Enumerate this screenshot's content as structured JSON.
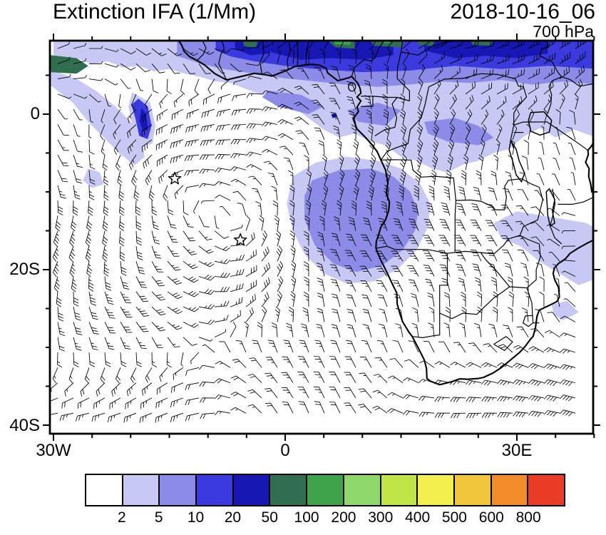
{
  "header": {
    "title": "Extinction IFA (1/Mm)",
    "datetime": "2018-10-16_06",
    "level": "700 hPa"
  },
  "axes": {
    "y_labels": [
      "0",
      "20S",
      "40S"
    ],
    "x_labels": [
      "30W",
      "0",
      "30E"
    ]
  },
  "colorbar": {
    "labels": [
      "2",
      "5",
      "10",
      "20",
      "50",
      "100",
      "200",
      "300",
      "400",
      "500",
      "600",
      "800"
    ],
    "colors": [
      "#ffffff",
      "#c8c8f4",
      "#8c8ce8",
      "#3a3ade",
      "#1717b4",
      "#2f6e4f",
      "#3da34a",
      "#8ed76a",
      "#bfe448",
      "#f3ef4f",
      "#f2c63a",
      "#f28c2b",
      "#ea3b25"
    ]
  },
  "chart_data": {
    "type": "heatmap",
    "title": "Extinction IFA (1/Mm)",
    "valid_time": "2018-10-16_06",
    "pressure_level": "700 hPa",
    "units": "1/Mm",
    "overlay": "700 hPa wind barbs",
    "region": "Africa / South Atlantic",
    "lon_range": [
      -30.5,
      40.7
    ],
    "lat_range": [
      -41.1,
      9.5
    ],
    "x_ticks": [
      {
        "lon": -30,
        "label": "30W"
      },
      {
        "lon": 0,
        "label": "0"
      },
      {
        "lon": 30,
        "label": "30E"
      }
    ],
    "y_ticks": [
      {
        "lat": 0,
        "label": "0"
      },
      {
        "lat": -20,
        "label": "20S"
      },
      {
        "lat": -40,
        "label": "40S"
      }
    ],
    "contour_levels": [
      2,
      5,
      10,
      20,
      50,
      100,
      200,
      300,
      400,
      500,
      600,
      800
    ],
    "legend_position": "bottom",
    "markers": [
      {
        "type": "star",
        "lon": -14.3,
        "lat": -8.3
      },
      {
        "type": "star",
        "lon": -5.8,
        "lat": -16.2
      }
    ],
    "shaded_regions": [
      {
        "level": "2-5",
        "color_index": 1,
        "points": [
          [
            -30,
            9.45
          ],
          [
            40.7,
            9.45
          ],
          [
            40.7,
            -3.2
          ],
          [
            37.5,
            -2
          ],
          [
            35,
            -3
          ],
          [
            33,
            -1.8
          ],
          [
            31,
            -2.8
          ],
          [
            29,
            -4.5
          ],
          [
            27,
            -5
          ],
          [
            25,
            -6
          ],
          [
            23,
            -6.5
          ],
          [
            21,
            -7.5
          ],
          [
            19,
            -7
          ],
          [
            17,
            -6
          ],
          [
            15,
            -5.5
          ],
          [
            13,
            -4
          ],
          [
            11,
            -3.5
          ],
          [
            9,
            -2.5
          ],
          [
            7,
            -3
          ],
          [
            5,
            -2
          ],
          [
            3,
            -0.5
          ],
          [
            1,
            1
          ],
          [
            -1,
            2
          ],
          [
            -3,
            2.5
          ],
          [
            -5,
            3.2
          ],
          [
            -7,
            4
          ],
          [
            -9,
            4.2
          ],
          [
            -11,
            4.8
          ],
          [
            -13,
            5.2
          ],
          [
            -15,
            5.8
          ],
          [
            -17,
            5.5
          ],
          [
            -19,
            6.2
          ],
          [
            -21,
            6
          ],
          [
            -23,
            6.8
          ],
          [
            -25,
            6.4
          ],
          [
            -27,
            7.2
          ],
          [
            -30,
            6.8
          ]
        ]
      },
      {
        "level": "2-5",
        "color_index": 1,
        "points": [
          [
            -30.5,
            5.8
          ],
          [
            -27,
            4.5
          ],
          [
            -24.5,
            3
          ],
          [
            -22,
            1
          ],
          [
            -20,
            -1
          ],
          [
            -18.5,
            -3.5
          ],
          [
            -18.2,
            -5.5
          ],
          [
            -19.5,
            -6.6
          ],
          [
            -21.5,
            -5
          ],
          [
            -23.5,
            -3
          ],
          [
            -25.5,
            -1
          ],
          [
            -27.5,
            1.5
          ],
          [
            -30.5,
            3.8
          ]
        ]
      },
      {
        "level": "2-5",
        "color_index": 1,
        "points": [
          [
            1,
            -8
          ],
          [
            4,
            -6.2
          ],
          [
            8,
            -5.5
          ],
          [
            12,
            -6
          ],
          [
            15,
            -7
          ],
          [
            17.5,
            -9
          ],
          [
            18.8,
            -11.5
          ],
          [
            18.5,
            -14.5
          ],
          [
            17,
            -17.5
          ],
          [
            14.5,
            -20
          ],
          [
            11.5,
            -21.5
          ],
          [
            8,
            -21.8
          ],
          [
            5,
            -20.5
          ],
          [
            2.5,
            -18
          ],
          [
            1,
            -15
          ],
          [
            0.2,
            -11.5
          ]
        ]
      },
      {
        "level": "2-5",
        "color_index": 1,
        "points": [
          [
            27,
            -14
          ],
          [
            30,
            -12.5
          ],
          [
            33,
            -13
          ],
          [
            36,
            -13.5
          ],
          [
            39,
            -14
          ],
          [
            40.7,
            -15
          ],
          [
            40.7,
            -21
          ],
          [
            38,
            -22
          ],
          [
            35.5,
            -20.5
          ],
          [
            33,
            -19
          ],
          [
            30.5,
            -17
          ],
          [
            28,
            -16
          ]
        ]
      },
      {
        "level": "2-5",
        "color_index": 1,
        "points": [
          [
            34.5,
            -24.5
          ],
          [
            36.5,
            -24
          ],
          [
            38,
            -25.5
          ],
          [
            36,
            -26.5
          ],
          [
            34.8,
            -25.8
          ]
        ]
      },
      {
        "level": "2-5",
        "color_index": 1,
        "points": [
          [
            -25.5,
            -7
          ],
          [
            -24,
            -7.5
          ],
          [
            -23.5,
            -9
          ],
          [
            -25,
            -9.5
          ],
          [
            -26.2,
            -8.5
          ]
        ]
      },
      {
        "level": "2-5",
        "color_index": 1,
        "points": [
          [
            -19.8,
            2.8
          ],
          [
            -17.5,
            1.5
          ],
          [
            -16.8,
            -1.5
          ],
          [
            -17.2,
            -3.8
          ],
          [
            -18.8,
            -4.2
          ],
          [
            -19.8,
            -1.5
          ],
          [
            -20.3,
            1
          ]
        ]
      },
      {
        "level": "5-10",
        "color_index": 2,
        "points": [
          [
            -14,
            9.45
          ],
          [
            40.7,
            9.45
          ],
          [
            40.7,
            3.8
          ],
          [
            36,
            4.2
          ],
          [
            32,
            3.8
          ],
          [
            28,
            4.4
          ],
          [
            24,
            4
          ],
          [
            20,
            4.2
          ],
          [
            16,
            3.8
          ],
          [
            12,
            3.5
          ],
          [
            8,
            3.8
          ],
          [
            4,
            4.2
          ],
          [
            0,
            4.6
          ],
          [
            -4,
            5.2
          ],
          [
            -8,
            5.8
          ],
          [
            -11,
            6.5
          ],
          [
            -14,
            7.5
          ]
        ]
      },
      {
        "level": "5-10",
        "color_index": 2,
        "points": [
          [
            3.5,
            -8.5
          ],
          [
            7,
            -7.2
          ],
          [
            11,
            -7
          ],
          [
            14,
            -8
          ],
          [
            16.2,
            -10
          ],
          [
            17.2,
            -12.5
          ],
          [
            16.8,
            -15
          ],
          [
            15.2,
            -17.5
          ],
          [
            12.5,
            -19.5
          ],
          [
            9.2,
            -20.3
          ],
          [
            6.2,
            -19.2
          ],
          [
            3.8,
            -16.8
          ],
          [
            2.5,
            -13.5
          ],
          [
            2.5,
            -10.5
          ]
        ]
      },
      {
        "level": "5-10",
        "color_index": 2,
        "points": [
          [
            18,
            -1
          ],
          [
            22,
            -0.5
          ],
          [
            25,
            -1.5
          ],
          [
            27,
            -3
          ],
          [
            25,
            -4
          ],
          [
            21,
            -3.5
          ],
          [
            18.5,
            -2.5
          ]
        ]
      },
      {
        "level": "5-10",
        "color_index": 2,
        "points": [
          [
            8,
            0.5
          ],
          [
            12,
            1.5
          ],
          [
            15,
            0.5
          ],
          [
            13,
            -1.5
          ],
          [
            9.5,
            -1
          ]
        ]
      },
      {
        "level": "5-10",
        "color_index": 2,
        "points": [
          [
            -2,
            3
          ],
          [
            2,
            2.5
          ],
          [
            5,
            1
          ],
          [
            3,
            0
          ],
          [
            -1,
            1
          ],
          [
            -3,
            2.2
          ]
        ]
      },
      {
        "level": "10-20",
        "color_index": 3,
        "points": [
          [
            -9,
            9.45
          ],
          [
            40.7,
            9.45
          ],
          [
            40.7,
            5.8
          ],
          [
            34,
            6.2
          ],
          [
            28,
            5.8
          ],
          [
            22,
            6.2
          ],
          [
            16,
            5.6
          ],
          [
            10,
            5.4
          ],
          [
            4,
            5.8
          ],
          [
            0,
            6.2
          ],
          [
            -4,
            6.8
          ],
          [
            -7,
            7.4
          ],
          [
            -9,
            8.2
          ]
        ]
      },
      {
        "level": "10-20",
        "color_index": 3,
        "points": [
          [
            -19,
            2
          ],
          [
            -17.8,
            1
          ],
          [
            -17.3,
            -1.5
          ],
          [
            -17.8,
            -3.2
          ],
          [
            -18.9,
            -2.8
          ],
          [
            -19.4,
            -0.5
          ],
          [
            -19.9,
            1.2
          ]
        ]
      },
      {
        "level": "20-50",
        "color_index": 4,
        "points": [
          [
            -2,
            9.45
          ],
          [
            14,
            9.45
          ],
          [
            14,
            7.6
          ],
          [
            10,
            7
          ],
          [
            6,
            7.2
          ],
          [
            2,
            7
          ],
          [
            -2,
            8
          ]
        ]
      },
      {
        "level": "20-50",
        "color_index": 4,
        "points": [
          [
            18,
            9.45
          ],
          [
            34,
            9.45
          ],
          [
            34,
            7.8
          ],
          [
            30,
            7.2
          ],
          [
            26,
            7.5
          ],
          [
            22,
            7.2
          ],
          [
            18,
            8.2
          ]
        ]
      },
      {
        "level": "20-50",
        "color_index": 4,
        "points": [
          [
            -6.5,
            9.45
          ],
          [
            -2,
            9.45
          ],
          [
            -2,
            7.8
          ],
          [
            -4.5,
            7.6
          ],
          [
            -6.5,
            8.4
          ]
        ]
      },
      {
        "level": "20-50",
        "color_index": 4,
        "points": [
          [
            -18.6,
            0.8
          ],
          [
            -18,
            0
          ],
          [
            -17.8,
            -1.8
          ],
          [
            -18.4,
            -2.2
          ],
          [
            -18.9,
            -0.8
          ]
        ]
      },
      {
        "level": "20-50",
        "color_index": 4,
        "points": [
          [
            6,
            0
          ],
          [
            6.6,
            0.1
          ],
          [
            6.7,
            -0.4
          ],
          [
            6.1,
            -0.5
          ]
        ]
      },
      {
        "level": "50-100",
        "color_index": 5,
        "points": [
          [
            -30.5,
            7.6
          ],
          [
            -27,
            7.2
          ],
          [
            -25.5,
            6.2
          ],
          [
            -27,
            5.2
          ],
          [
            -30.5,
            5.4
          ]
        ]
      },
      {
        "level": "50-100",
        "color_index": 5,
        "points": [
          [
            5.5,
            9.45
          ],
          [
            9,
            9.45
          ],
          [
            9,
            8.4
          ],
          [
            6.5,
            8.6
          ]
        ]
      },
      {
        "level": "50-100",
        "color_index": 5,
        "points": [
          [
            11,
            9.45
          ],
          [
            15.5,
            9.45
          ],
          [
            15,
            8.6
          ],
          [
            11.5,
            8.8
          ]
        ]
      },
      {
        "level": "50-100",
        "color_index": 5,
        "points": [
          [
            17,
            9.45
          ],
          [
            19.5,
            9.45
          ],
          [
            19,
            8.8
          ],
          [
            17.3,
            8.9
          ]
        ]
      },
      {
        "level": "50-100",
        "color_index": 5,
        "points": [
          [
            24,
            9.45
          ],
          [
            27,
            9.45
          ],
          [
            26.5,
            8.8
          ],
          [
            24.3,
            8.9
          ]
        ]
      },
      {
        "level": "50-100",
        "color_index": 5,
        "points": [
          [
            -5.5,
            9.45
          ],
          [
            -3.5,
            9.45
          ],
          [
            -3.8,
            8.6
          ],
          [
            -5.3,
            8.7
          ]
        ]
      },
      {
        "level": "100-200",
        "color_index": 6,
        "points": [
          [
            6.2,
            9.45
          ],
          [
            8.6,
            9.45
          ],
          [
            8.4,
            8.9
          ],
          [
            6.5,
            9
          ]
        ]
      },
      {
        "level": "100-200",
        "color_index": 6,
        "points": [
          [
            12.5,
            9.45
          ],
          [
            13.6,
            9.45
          ],
          [
            13.4,
            9.1
          ],
          [
            12.7,
            9.15
          ]
        ]
      }
    ]
  }
}
